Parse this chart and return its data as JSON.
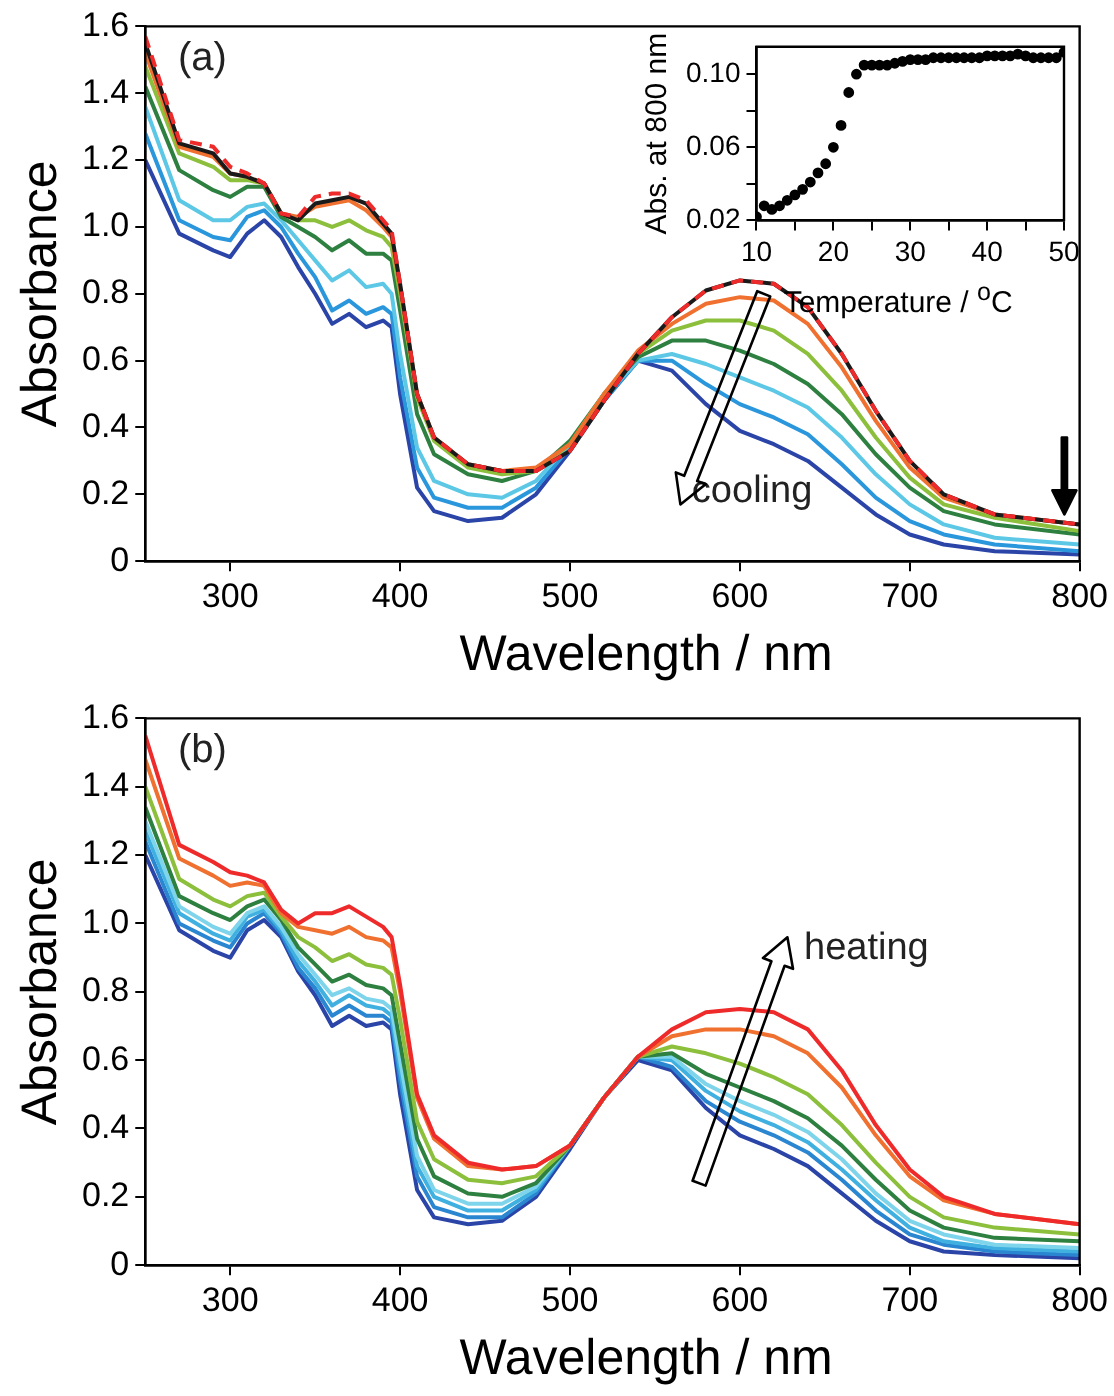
{
  "chart_data": [
    {
      "type": "line",
      "xlabel": "Wavelength / nm",
      "ylabel": "Absorbance",
      "xlim": [
        250,
        800
      ],
      "xticks": [
        300,
        400,
        500,
        600,
        700,
        800
      ],
      "ylim": [
        0,
        1.6
      ],
      "yticks": [
        0,
        0.2,
        0.4,
        0.6,
        0.8,
        {
          "value": 1,
          "label": "1.0"
        },
        1.2,
        1.4,
        1.6
      ],
      "grid": false,
      "legend": false,
      "marker": "none",
      "annotations": [
        "(a)",
        "cooling"
      ],
      "x": [
        250,
        270,
        290,
        300,
        310,
        320,
        330,
        340,
        350,
        360,
        370,
        380,
        390,
        395,
        400,
        410,
        420,
        440,
        460,
        480,
        500,
        520,
        540,
        560,
        580,
        600,
        620,
        640,
        660,
        680,
        700,
        720,
        750,
        800
      ],
      "series": [
        {
          "color": "#ee2a2a",
          "line_style": "dashed",
          "values": [
            1.57,
            1.26,
            1.24,
            1.18,
            1.16,
            1.13,
            1.04,
            1.03,
            1.09,
            1.1,
            1.1,
            1.08,
            1.02,
            0.99,
            0.83,
            0.5,
            0.37,
            0.29,
            0.27,
            0.27,
            0.33,
            0.48,
            0.62,
            0.73,
            0.81,
            0.84,
            0.83,
            0.76,
            0.62,
            0.45,
            0.3,
            0.2,
            0.14,
            0.11
          ]
        },
        {
          "color": "#1a1a1a",
          "values": [
            1.55,
            1.25,
            1.22,
            1.16,
            1.15,
            1.13,
            1.04,
            1.02,
            1.07,
            1.08,
            1.09,
            1.07,
            1.01,
            0.98,
            0.83,
            0.5,
            0.37,
            0.29,
            0.27,
            0.27,
            0.33,
            0.48,
            0.62,
            0.73,
            0.81,
            0.84,
            0.83,
            0.76,
            0.62,
            0.45,
            0.3,
            0.2,
            0.14,
            0.11
          ]
        },
        {
          "color": "#f07030",
          "values": [
            1.52,
            1.24,
            1.21,
            1.16,
            1.15,
            1.13,
            1.04,
            1.03,
            1.06,
            1.07,
            1.08,
            1.05,
            1,
            0.97,
            0.82,
            0.5,
            0.37,
            0.29,
            0.27,
            0.28,
            0.35,
            0.5,
            0.63,
            0.71,
            0.77,
            0.79,
            0.78,
            0.71,
            0.58,
            0.42,
            0.28,
            0.19,
            0.14,
            0.11
          ]
        },
        {
          "color": "#8cbf3c",
          "values": [
            1.48,
            1.22,
            1.18,
            1.14,
            1.14,
            1.13,
            1.04,
            1.02,
            1.02,
            1,
            1.02,
            0.99,
            0.97,
            0.94,
            0.8,
            0.49,
            0.36,
            0.28,
            0.26,
            0.27,
            0.35,
            0.5,
            0.62,
            0.69,
            0.72,
            0.72,
            0.69,
            0.62,
            0.51,
            0.37,
            0.25,
            0.17,
            0.13,
            0.09
          ]
        },
        {
          "color": "#2e8040",
          "values": [
            1.42,
            1.17,
            1.11,
            1.09,
            1.12,
            1.12,
            1.03,
            1,
            0.97,
            0.93,
            0.96,
            0.92,
            0.92,
            0.9,
            0.75,
            0.44,
            0.32,
            0.26,
            0.24,
            0.27,
            0.36,
            0.5,
            0.61,
            0.66,
            0.66,
            0.63,
            0.59,
            0.53,
            0.44,
            0.32,
            0.22,
            0.15,
            0.11,
            0.08
          ]
        },
        {
          "color": "#5cc8e6",
          "values": [
            1.36,
            1.08,
            1.02,
            1.02,
            1.06,
            1.07,
            1.02,
            0.96,
            0.9,
            0.84,
            0.87,
            0.82,
            0.83,
            0.8,
            0.62,
            0.34,
            0.24,
            0.2,
            0.19,
            0.24,
            0.35,
            0.49,
            0.6,
            0.62,
            0.59,
            0.55,
            0.51,
            0.46,
            0.37,
            0.26,
            0.17,
            0.11,
            0.07,
            0.05
          ]
        },
        {
          "color": "#2a96dc",
          "values": [
            1.28,
            1.02,
            0.97,
            0.96,
            1.03,
            1.05,
            1,
            0.92,
            0.85,
            0.75,
            0.78,
            0.74,
            0.76,
            0.74,
            0.55,
            0.28,
            0.19,
            0.16,
            0.16,
            0.22,
            0.34,
            0.48,
            0.6,
            0.6,
            0.53,
            0.47,
            0.43,
            0.38,
            0.29,
            0.19,
            0.12,
            0.08,
            0.05,
            0.03
          ]
        },
        {
          "color": "#2a44a8",
          "values": [
            1.2,
            0.98,
            0.93,
            0.91,
            0.98,
            1.02,
            0.97,
            0.88,
            0.8,
            0.71,
            0.74,
            0.7,
            0.72,
            0.7,
            0.5,
            0.22,
            0.15,
            0.12,
            0.13,
            0.2,
            0.33,
            0.48,
            0.6,
            0.57,
            0.47,
            0.39,
            0.35,
            0.3,
            0.22,
            0.14,
            0.08,
            0.05,
            0.03,
            0.02
          ]
        }
      ]
    },
    {
      "type": "scatter",
      "xlabel": "Temperature / $^{o}$C",
      "ylabel": "Abs. at 800 nm",
      "xlim": [
        10,
        50
      ],
      "xticks": [
        10,
        {
          "value": 15,
          "label": null
        },
        20,
        {
          "value": 25,
          "label": null
        },
        30,
        {
          "value": 35,
          "label": null
        },
        40,
        {
          "value": 45,
          "label": null
        },
        50
      ],
      "ylim": [
        0.02,
        0.115
      ],
      "yticks": [
        0.02,
        {
          "value": 0.04,
          "label": null
        },
        0.06,
        {
          "value": 0.08,
          "label": null
        },
        {
          "value": 0.1,
          "label": "0.10"
        }
      ],
      "grid": false,
      "legend": false,
      "marker": "circle",
      "x": [
        10,
        11,
        12,
        13,
        14,
        15,
        16,
        17,
        18,
        19,
        20,
        21,
        22,
        23,
        24,
        25,
        26,
        27,
        28,
        29,
        30,
        31,
        32,
        33,
        34,
        35,
        36,
        37,
        38,
        39,
        40,
        41,
        42,
        43,
        44,
        45,
        46,
        47,
        48,
        49,
        50
      ],
      "series": [
        {
          "color": "#000000",
          "values": [
            0.022,
            0.028,
            0.026,
            0.028,
            0.031,
            0.034,
            0.037,
            0.041,
            0.046,
            0.051,
            0.06,
            0.072,
            0.09,
            0.1,
            0.105,
            0.105,
            0.105,
            0.105,
            0.106,
            0.107,
            0.108,
            0.108,
            0.108,
            0.109,
            0.109,
            0.109,
            0.109,
            0.109,
            0.109,
            0.109,
            0.11,
            0.11,
            0.11,
            0.11,
            0.111,
            0.11,
            0.109,
            0.109,
            0.109,
            0.109,
            0.112
          ]
        }
      ]
    },
    {
      "type": "line",
      "xlabel": "Wavelength / nm",
      "ylabel": "Absorbance",
      "xlim": [
        250,
        800
      ],
      "xticks": [
        300,
        400,
        500,
        600,
        700,
        800
      ],
      "ylim": [
        0,
        1.6
      ],
      "yticks": [
        0,
        0.2,
        0.4,
        0.6,
        0.8,
        {
          "value": 1,
          "label": "1.0"
        },
        1.2,
        1.4,
        1.6
      ],
      "grid": false,
      "legend": false,
      "marker": "none",
      "annotations": [
        "(b)",
        "heating"
      ],
      "x": [
        250,
        270,
        290,
        300,
        310,
        320,
        330,
        340,
        350,
        360,
        370,
        380,
        390,
        395,
        400,
        410,
        420,
        440,
        460,
        480,
        500,
        520,
        540,
        560,
        580,
        600,
        620,
        640,
        660,
        680,
        700,
        720,
        750,
        800
      ],
      "series": [
        {
          "color": "#ee2a2a",
          "values": [
            1.55,
            1.23,
            1.18,
            1.15,
            1.14,
            1.12,
            1.04,
            1,
            1.03,
            1.03,
            1.05,
            1.02,
            0.99,
            0.96,
            0.82,
            0.5,
            0.38,
            0.3,
            0.28,
            0.29,
            0.35,
            0.49,
            0.61,
            0.69,
            0.74,
            0.75,
            0.74,
            0.69,
            0.57,
            0.41,
            0.28,
            0.2,
            0.15,
            0.12
          ]
        },
        {
          "color": "#f07030",
          "values": [
            1.48,
            1.19,
            1.14,
            1.11,
            1.12,
            1.11,
            1.03,
            0.99,
            0.98,
            0.97,
            0.99,
            0.96,
            0.95,
            0.93,
            0.8,
            0.49,
            0.37,
            0.29,
            0.28,
            0.29,
            0.35,
            0.49,
            0.61,
            0.67,
            0.69,
            0.69,
            0.67,
            0.62,
            0.52,
            0.38,
            0.26,
            0.19,
            0.15,
            0.12
          ]
        },
        {
          "color": "#8cbf3c",
          "values": [
            1.4,
            1.13,
            1.07,
            1.05,
            1.08,
            1.09,
            1.02,
            0.96,
            0.93,
            0.89,
            0.91,
            0.88,
            0.87,
            0.85,
            0.72,
            0.42,
            0.31,
            0.25,
            0.24,
            0.26,
            0.35,
            0.49,
            0.61,
            0.64,
            0.62,
            0.59,
            0.55,
            0.5,
            0.41,
            0.3,
            0.2,
            0.14,
            0.11,
            0.09
          ]
        },
        {
          "color": "#2e8040",
          "values": [
            1.34,
            1.08,
            1.03,
            1.01,
            1.05,
            1.07,
            1.01,
            0.93,
            0.88,
            0.83,
            0.85,
            0.82,
            0.81,
            0.79,
            0.65,
            0.37,
            0.26,
            0.21,
            0.2,
            0.24,
            0.35,
            0.49,
            0.61,
            0.62,
            0.56,
            0.52,
            0.48,
            0.43,
            0.35,
            0.25,
            0.16,
            0.11,
            0.08,
            0.07
          ]
        },
        {
          "color": "#7ed4ea",
          "values": [
            1.3,
            1.05,
            0.99,
            0.97,
            1.03,
            1.05,
            0.99,
            0.91,
            0.85,
            0.79,
            0.81,
            0.78,
            0.77,
            0.75,
            0.6,
            0.32,
            0.22,
            0.18,
            0.18,
            0.23,
            0.35,
            0.49,
            0.61,
            0.61,
            0.53,
            0.48,
            0.44,
            0.39,
            0.31,
            0.21,
            0.13,
            0.09,
            0.06,
            0.05
          ]
        },
        {
          "color": "#3fb0e0",
          "values": [
            1.27,
            1.03,
            0.97,
            0.95,
            1.02,
            1.04,
            0.98,
            0.89,
            0.83,
            0.76,
            0.79,
            0.76,
            0.75,
            0.73,
            0.57,
            0.29,
            0.2,
            0.16,
            0.16,
            0.22,
            0.35,
            0.49,
            0.61,
            0.6,
            0.51,
            0.45,
            0.41,
            0.36,
            0.28,
            0.19,
            0.11,
            0.07,
            0.05,
            0.04
          ]
        },
        {
          "color": "#2a86d0",
          "values": [
            1.24,
            1,
            0.95,
            0.93,
            1,
            1.03,
            0.97,
            0.87,
            0.81,
            0.73,
            0.76,
            0.73,
            0.73,
            0.71,
            0.54,
            0.26,
            0.17,
            0.14,
            0.14,
            0.21,
            0.35,
            0.49,
            0.61,
            0.58,
            0.48,
            0.42,
            0.38,
            0.33,
            0.25,
            0.16,
            0.09,
            0.06,
            0.04,
            0.03
          ]
        },
        {
          "color": "#2a44a8",
          "values": [
            1.2,
            0.98,
            0.92,
            0.9,
            0.98,
            1.01,
            0.96,
            0.86,
            0.79,
            0.7,
            0.73,
            0.7,
            0.71,
            0.69,
            0.5,
            0.22,
            0.14,
            0.12,
            0.13,
            0.2,
            0.34,
            0.49,
            0.6,
            0.57,
            0.46,
            0.38,
            0.34,
            0.29,
            0.21,
            0.13,
            0.07,
            0.04,
            0.03,
            0.02
          ]
        }
      ]
    }
  ]
}
